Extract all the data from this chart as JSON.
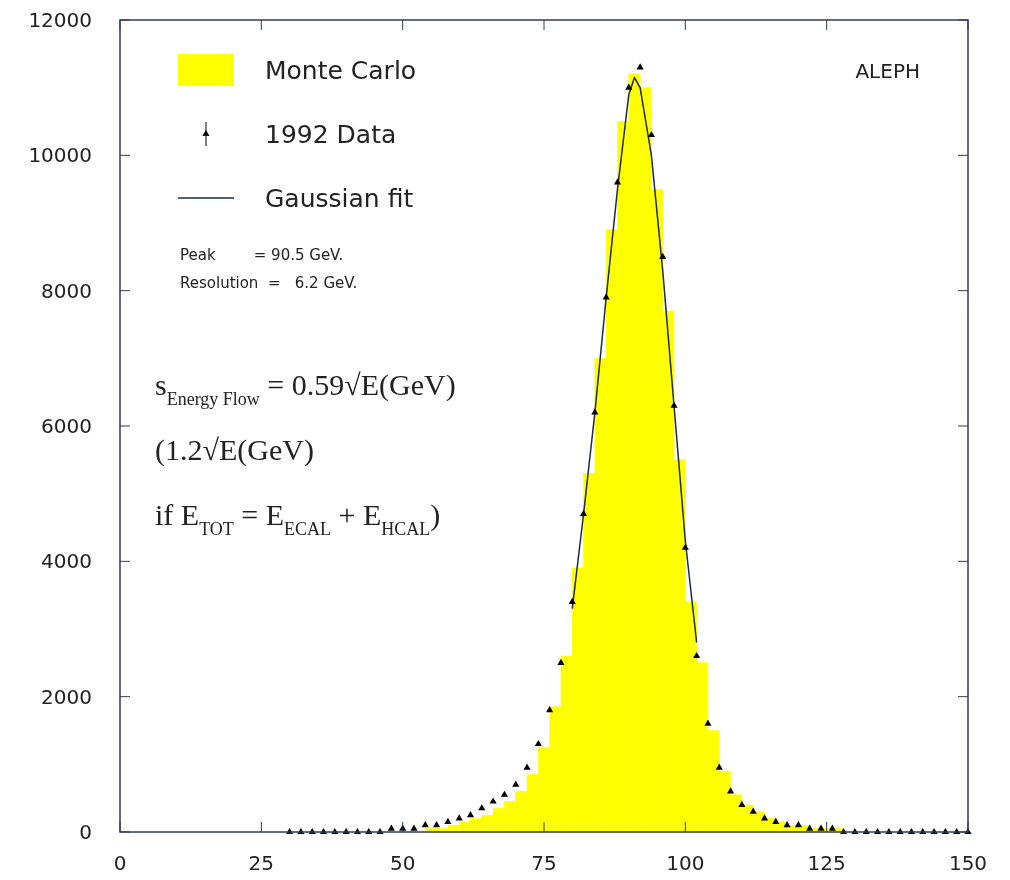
{
  "chart_data": {
    "type": "histogram",
    "xlim": [
      0,
      150
    ],
    "ylim": [
      0,
      12000
    ],
    "xticks": [
      0,
      25,
      50,
      75,
      100,
      125,
      150
    ],
    "yticks": [
      0,
      2000,
      4000,
      6000,
      8000,
      10000,
      12000
    ],
    "legend": "top left",
    "bins": [
      50,
      52,
      54,
      56,
      58,
      60,
      62,
      64,
      66,
      68,
      70,
      72,
      74,
      76,
      78,
      80,
      82,
      84,
      86,
      88,
      90,
      92,
      94,
      96,
      98,
      100,
      102,
      104,
      106,
      108,
      110,
      112,
      114,
      116,
      118,
      120,
      122,
      124,
      126,
      128,
      130
    ],
    "series": [
      {
        "name": "Monte Carlo",
        "color": "#ffff00",
        "values": [
          0,
          0,
          50,
          50,
          100,
          150,
          200,
          250,
          350,
          450,
          600,
          850,
          1250,
          1850,
          2600,
          3900,
          5300,
          7000,
          8900,
          10500,
          11200,
          11000,
          9500,
          7700,
          5500,
          3400,
          2500,
          1500,
          900,
          550,
          400,
          300,
          200,
          150,
          100,
          100,
          50,
          50,
          50,
          0
        ]
      },
      {
        "name": "1992 Data",
        "type": "scatter",
        "marker": "triangle",
        "color": "#000000",
        "x": [
          30,
          32,
          34,
          36,
          38,
          40,
          42,
          44,
          46,
          48,
          50,
          52,
          54,
          56,
          58,
          60,
          62,
          64,
          66,
          68,
          70,
          72,
          74,
          76,
          78,
          80,
          82,
          84,
          86,
          88,
          90,
          92,
          94,
          96,
          98,
          100,
          102,
          104,
          106,
          108,
          110,
          112,
          114,
          116,
          118,
          120,
          122,
          124,
          126,
          128,
          130,
          132,
          134,
          136,
          138,
          140,
          142,
          144,
          146,
          148,
          150
        ],
        "values": [
          0,
          0,
          0,
          0,
          0,
          0,
          0,
          0,
          0,
          50,
          50,
          50,
          100,
          100,
          150,
          200,
          250,
          350,
          450,
          550,
          700,
          950,
          1300,
          1800,
          2500,
          3400,
          4700,
          6200,
          7900,
          9600,
          11000,
          11300,
          10300,
          8500,
          6300,
          4200,
          2600,
          1600,
          950,
          600,
          400,
          300,
          200,
          150,
          100,
          100,
          50,
          50,
          50,
          0,
          0,
          0,
          0,
          0,
          0,
          0,
          0,
          0,
          0,
          0,
          0
        ]
      },
      {
        "name": "Gaussian fit",
        "type": "line",
        "marker": "none",
        "color": "#1a2a4a",
        "x": [
          80,
          82,
          84,
          86,
          88,
          90,
          91,
          92,
          94,
          96,
          98,
          100,
          102
        ],
        "values": [
          3300,
          4700,
          6200,
          7900,
          9500,
          10900,
          11150,
          11000,
          10000,
          8300,
          6300,
          4300,
          2800
        ]
      }
    ],
    "annotations": [
      "ALEPH",
      "Peak        = 90.5 GeV.",
      "Resolution  =   6.2 GeV.",
      "s$_{Energy Flow}$ = 0.59√E(GeV)",
      "(1.2√E(GeV)",
      "if E$_{TOT}$ = E$_{ECAL}$ + E$_{HCAL}$)"
    ]
  }
}
